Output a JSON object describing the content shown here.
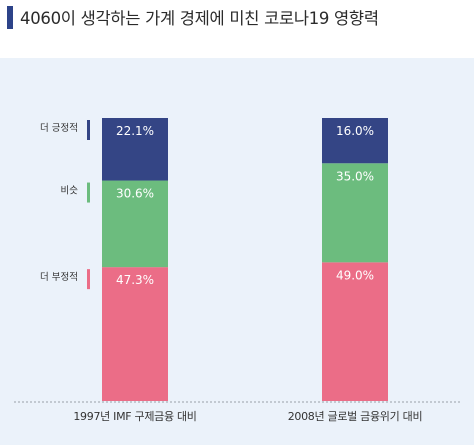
{
  "title": "4060이 생각하는 가계 경제에 미친 코로나19 영향력",
  "colors": {
    "title_mark": "#2d4389",
    "panel_bg": "#ebf2fa"
  },
  "chart_data": {
    "type": "bar",
    "stacked": true,
    "categories": [
      "1997년 IMF 구제금융 대비",
      "2008년 글로벌 금융위기 대비"
    ],
    "series": [
      {
        "name": "더 부정적",
        "color": "#eb6d87",
        "values": [
          47.3,
          49.0
        ]
      },
      {
        "name": "비슷",
        "color": "#6cbc7e",
        "values": [
          30.6,
          35.0
        ]
      },
      {
        "name": "더 긍정적",
        "color": "#344585",
        "values": [
          22.1,
          16.0
        ]
      }
    ],
    "value_suffix": "%",
    "ylim": [
      0,
      100
    ],
    "grid": false,
    "legend": "left, beside first bar"
  }
}
